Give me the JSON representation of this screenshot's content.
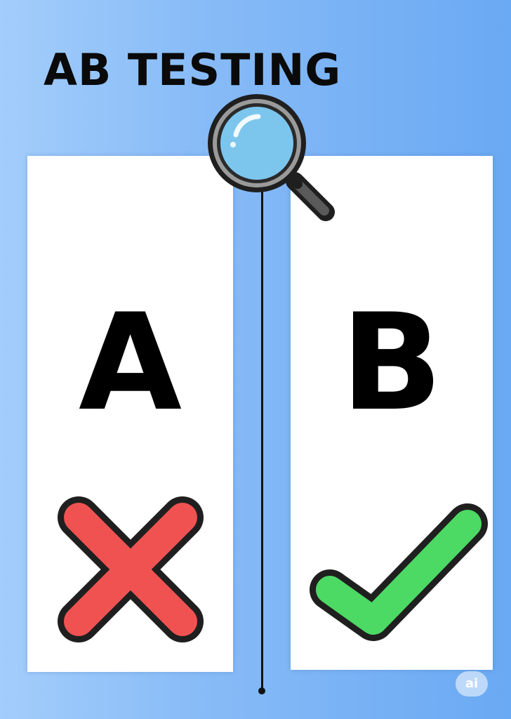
{
  "title": "AB TESTING",
  "variants": [
    {
      "letter": "A",
      "result_icon": "cross-icon",
      "result": "rejected",
      "icon_color": "#f05252"
    },
    {
      "letter": "B",
      "result_icon": "checkmark-icon",
      "result": "winner",
      "icon_color": "#4cd964"
    }
  ],
  "divider_icon": "magnifying-glass-icon",
  "badge": {
    "text": "ai"
  },
  "colors": {
    "background_light": "#a3cdfb",
    "background_dark": "#6aa9f3",
    "panel": "#ffffff",
    "outline": "#1f1f1f",
    "lens": "#7cc6ee"
  }
}
